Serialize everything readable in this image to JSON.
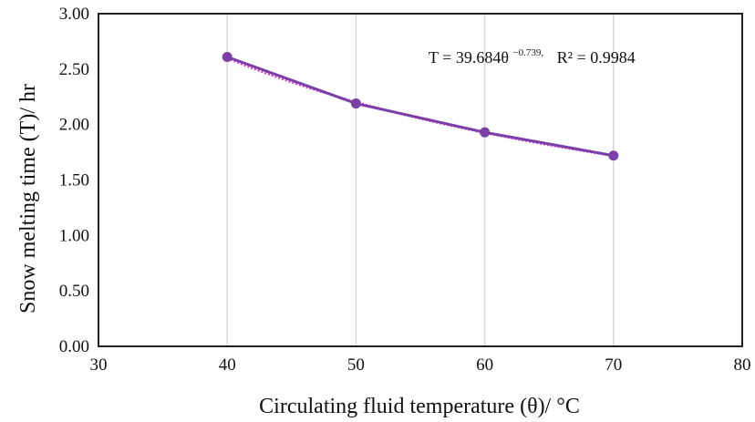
{
  "chart_data": {
    "type": "line",
    "xlabel": "Circulating fluid temperature (θ)/ °C",
    "ylabel": "Snow melting time (T)/ hr",
    "xlim": [
      30,
      80
    ],
    "ylim": [
      0.0,
      3.0
    ],
    "x_ticks": [
      30,
      40,
      50,
      60,
      70,
      80
    ],
    "y_ticks": [
      0.0,
      0.5,
      1.0,
      1.5,
      2.0,
      2.5,
      3.0
    ],
    "x_tick_labels": [
      "30",
      "40",
      "50",
      "60",
      "70",
      "80"
    ],
    "y_tick_labels": [
      "0.00",
      "0.50",
      "1.00",
      "1.50",
      "2.00",
      "2.50",
      "3.00"
    ],
    "grid": "vertical",
    "series": [
      {
        "x": [
          40,
          50,
          60,
          70
        ],
        "values": [
          2.61,
          2.19,
          1.93,
          1.72
        ],
        "color": "#7b3fa8",
        "marker": "circle"
      }
    ],
    "trendline": {
      "form": "power",
      "coefficient": 39.684,
      "exponent": -0.739,
      "x_range": [
        40,
        70
      ],
      "color": "#e040c8",
      "style": "dotted"
    },
    "annotation": {
      "equation_prefix": "T = 39.684θ",
      "equation_exponent": "−0.739,",
      "r_squared_label": "R² = 0.9984"
    }
  }
}
